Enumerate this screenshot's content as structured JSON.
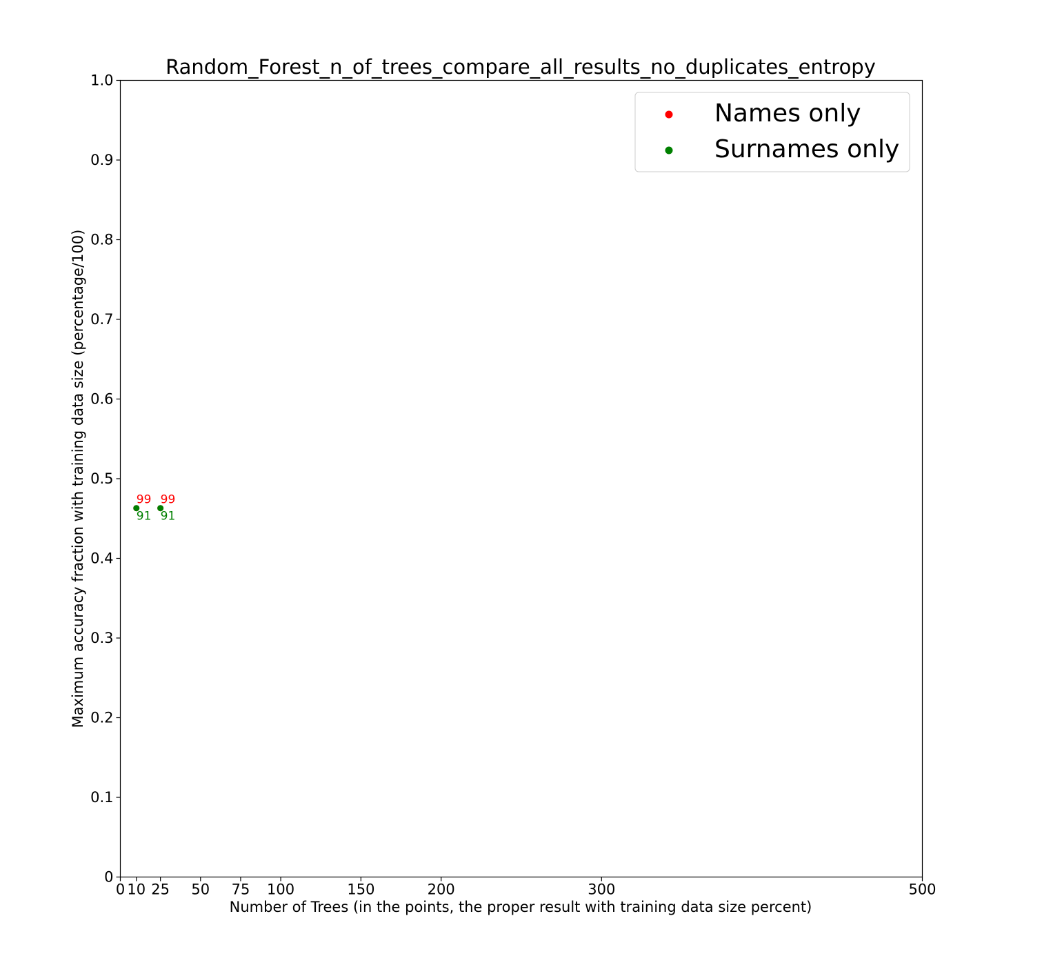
{
  "chart_data": {
    "type": "scatter",
    "title": "Random_Forest_n_of_trees_compare_all_results_no_duplicates_entropy",
    "xlabel": "Number of Trees (in the points, the proper result with training data size percent)",
    "ylabel": "Maximum accuracy fraction with training data size (percentage/100)",
    "xlim": [
      0,
      500
    ],
    "ylim": [
      0,
      1.0
    ],
    "x_ticks": [
      0,
      10,
      25,
      50,
      75,
      100,
      150,
      200,
      300,
      500
    ],
    "x_tick_labels": [
      "0",
      "10",
      "25",
      "50",
      "75",
      "100",
      "150",
      "200",
      "300",
      "500"
    ],
    "y_ticks": [
      0,
      0.1,
      0.2,
      0.3,
      0.4,
      0.5,
      0.6,
      0.7,
      0.8,
      0.9,
      1.0
    ],
    "y_tick_labels": [
      "0",
      "0.1",
      "0.2",
      "0.3",
      "0.4",
      "0.5",
      "0.6",
      "0.7",
      "0.8",
      "0.9",
      "1.0"
    ],
    "grid": false,
    "legend_position": "top-right",
    "series": [
      {
        "name": "Names only",
        "color": "#ff0000",
        "label_position": "above",
        "points": [
          {
            "x": 10,
            "y": 0.463,
            "label": "99"
          },
          {
            "x": 25,
            "y": 0.463,
            "label": "99"
          }
        ]
      },
      {
        "name": "Surnames only",
        "color": "#008000",
        "label_position": "below",
        "points": [
          {
            "x": 10,
            "y": 0.463,
            "label": "91"
          },
          {
            "x": 25,
            "y": 0.463,
            "label": "91"
          }
        ]
      }
    ]
  }
}
